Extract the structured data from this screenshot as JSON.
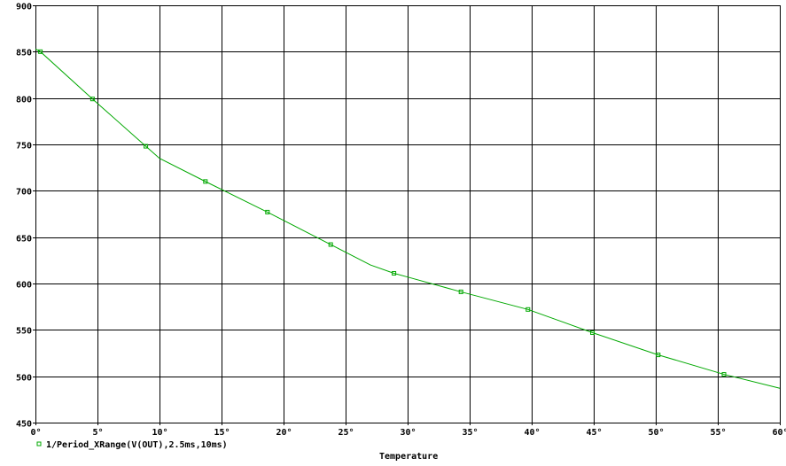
{
  "chart_data": {
    "type": "line",
    "title": "",
    "xlabel": "Temperature",
    "ylabel": "",
    "xlim": [
      0,
      60
    ],
    "ylim": [
      450,
      900
    ],
    "grid": true,
    "x_ticks": [
      "0°",
      "5°",
      "10°",
      "15°",
      "20°",
      "25°",
      "30°",
      "35°",
      "40°",
      "45°",
      "50°",
      "55°",
      "60°"
    ],
    "x_tick_values": [
      0,
      5,
      10,
      15,
      20,
      25,
      30,
      35,
      40,
      45,
      50,
      55,
      60
    ],
    "y_ticks": [
      "450",
      "500",
      "550",
      "600",
      "650",
      "700",
      "750",
      "800",
      "850",
      "900"
    ],
    "y_tick_values": [
      450,
      500,
      550,
      600,
      650,
      700,
      750,
      800,
      850,
      900
    ],
    "legend_position": "bottom-left",
    "series": [
      {
        "name": "1/Period_XRange(V(OUT),2.5ms,10ms)",
        "color": "#00a800",
        "marker": "square",
        "line_points": [
          [
            0,
            853
          ],
          [
            0.4,
            850
          ],
          [
            4.6,
            799
          ],
          [
            8.9,
            748
          ],
          [
            10,
            735
          ],
          [
            13.7,
            710
          ],
          [
            18.7,
            677
          ],
          [
            23.8,
            642
          ],
          [
            27,
            620
          ],
          [
            28.9,
            611
          ],
          [
            30,
            607
          ],
          [
            34.3,
            591
          ],
          [
            39.7,
            572
          ],
          [
            44.9,
            547
          ],
          [
            50.2,
            523
          ],
          [
            55.5,
            502
          ],
          [
            60,
            487
          ]
        ],
        "markers": [
          [
            0.4,
            850
          ],
          [
            4.6,
            799
          ],
          [
            8.9,
            748
          ],
          [
            13.7,
            710
          ],
          [
            18.7,
            677
          ],
          [
            23.8,
            642
          ],
          [
            28.9,
            611
          ],
          [
            34.3,
            591
          ],
          [
            39.7,
            572
          ],
          [
            44.9,
            547
          ],
          [
            50.2,
            523
          ],
          [
            55.5,
            502
          ]
        ]
      }
    ]
  }
}
